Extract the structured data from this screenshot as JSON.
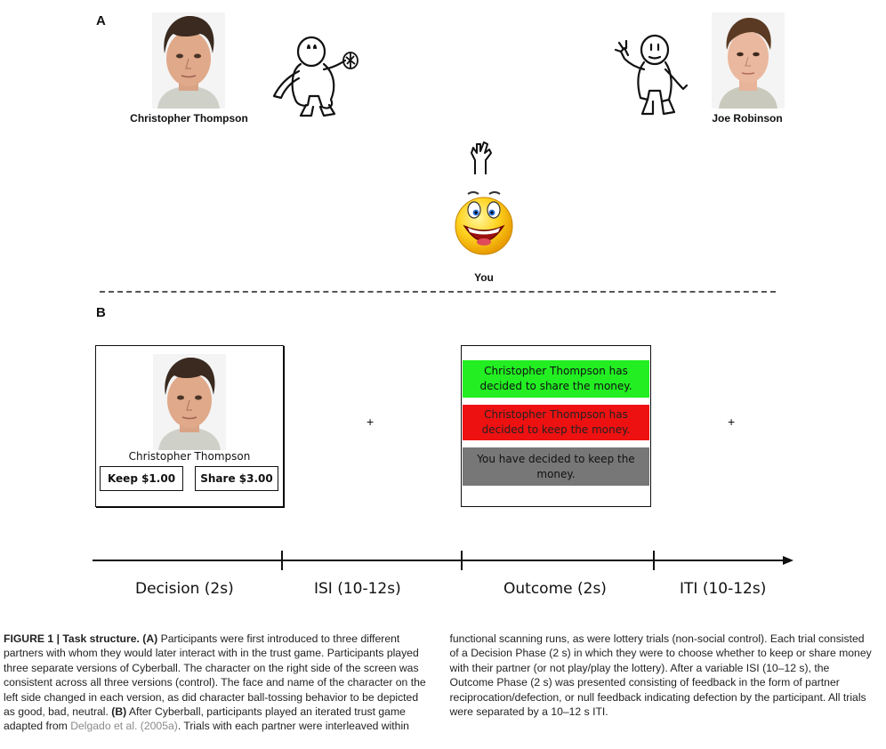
{
  "panel_a": {
    "label": "A",
    "left_partner": {
      "name": "Christopher Thompson"
    },
    "right_partner": {
      "name": "Joe Robinson"
    },
    "you": {
      "label": "You"
    }
  },
  "panel_b": {
    "label": "B",
    "decision_screen": {
      "name": "Christopher Thompson",
      "keep_label": "Keep $1.00",
      "share_label": "Share $3.00"
    },
    "fixation_symbol": "+",
    "outcome_screen": {
      "share_text": "Christopher Thompson has decided to share the money.",
      "keep_text": "Christopher Thompson has decided to keep the money.",
      "self_text": "You have decided to keep the money.",
      "colors": {
        "share": "#22ee22",
        "keep": "#ee1111",
        "self": "#777777"
      }
    },
    "timeline": {
      "phases": [
        "Decision (2s)",
        "ISI (10-12s)",
        "Outcome (2s)",
        "ITI (10-12s)"
      ]
    }
  },
  "caption": {
    "fig_label": "FIGURE 1 | Task structure.",
    "a_marker": "(A)",
    "text_a": " Participants were first introduced to three different partners with whom they would later interact with in the trust game. Participants played three separate versions of Cyberball. The character on the right side of the screen was consistent across all three versions (control). The face and name of the character on the left side changed in each version, as did character ball-tossing behavior to be depicted as good, bad, neutral. ",
    "b_marker": "(B)",
    "text_b": " After Cyberball, participants played an iterated trust game adapted from ",
    "citation": "Delgado et al. (2005a)",
    "text_c": ". Trials with each partner were interleaved within functional scanning runs, as were lottery trials (non-social control). Each trial consisted of a Decision Phase (2 s) in which they were to choose whether to keep or share money with their partner (or not play/play the lottery). After a variable ISI (10–12 s), the Outcome Phase (2 s) was presented consisting of feedback in the form of partner reciprocation/defection, or null feedback indicating defection by the participant. All trials were separated by a 10–12 s ITI."
  }
}
